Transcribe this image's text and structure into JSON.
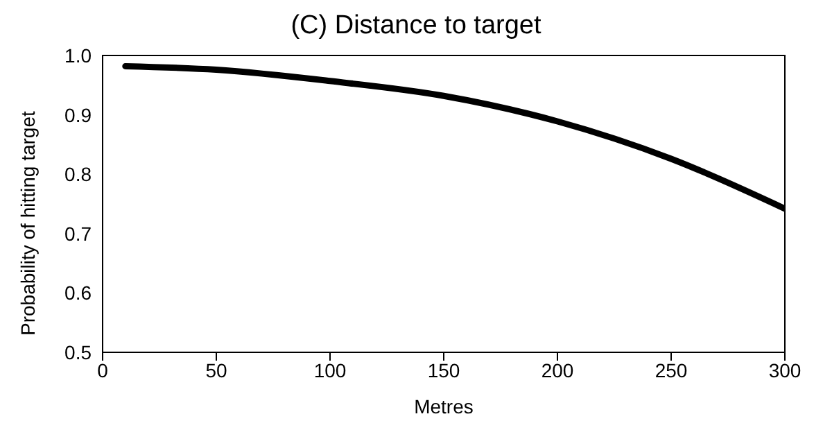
{
  "chart_data": {
    "type": "line",
    "title": "(C) Distance to target",
    "xlabel": "Metres",
    "ylabel": "Probability of hitting target",
    "x": [
      10,
      50,
      100,
      150,
      200,
      250,
      300
    ],
    "series": [
      {
        "color": "#000000",
        "values": [
          0.982,
          0.976,
          0.957,
          0.932,
          0.889,
          0.826,
          0.742
        ]
      }
    ],
    "xlim": [
      0,
      300
    ],
    "xticks": [
      0,
      50,
      100,
      150,
      200,
      250,
      300
    ],
    "ylim": [
      0.5,
      1.0
    ],
    "yticks": [
      {
        "value": 0.5,
        "label": "0.5"
      },
      {
        "value": 0.6,
        "label": "0.6"
      },
      {
        "value": 0.7,
        "label": "0.7"
      },
      {
        "value": 0.8,
        "label": "0.8"
      },
      {
        "value": 0.9,
        "label": "0.9"
      },
      {
        "value": 1.0,
        "label": "1.0"
      }
    ],
    "grid": false,
    "legend": false,
    "marker": "none",
    "line_style": "solid"
  }
}
